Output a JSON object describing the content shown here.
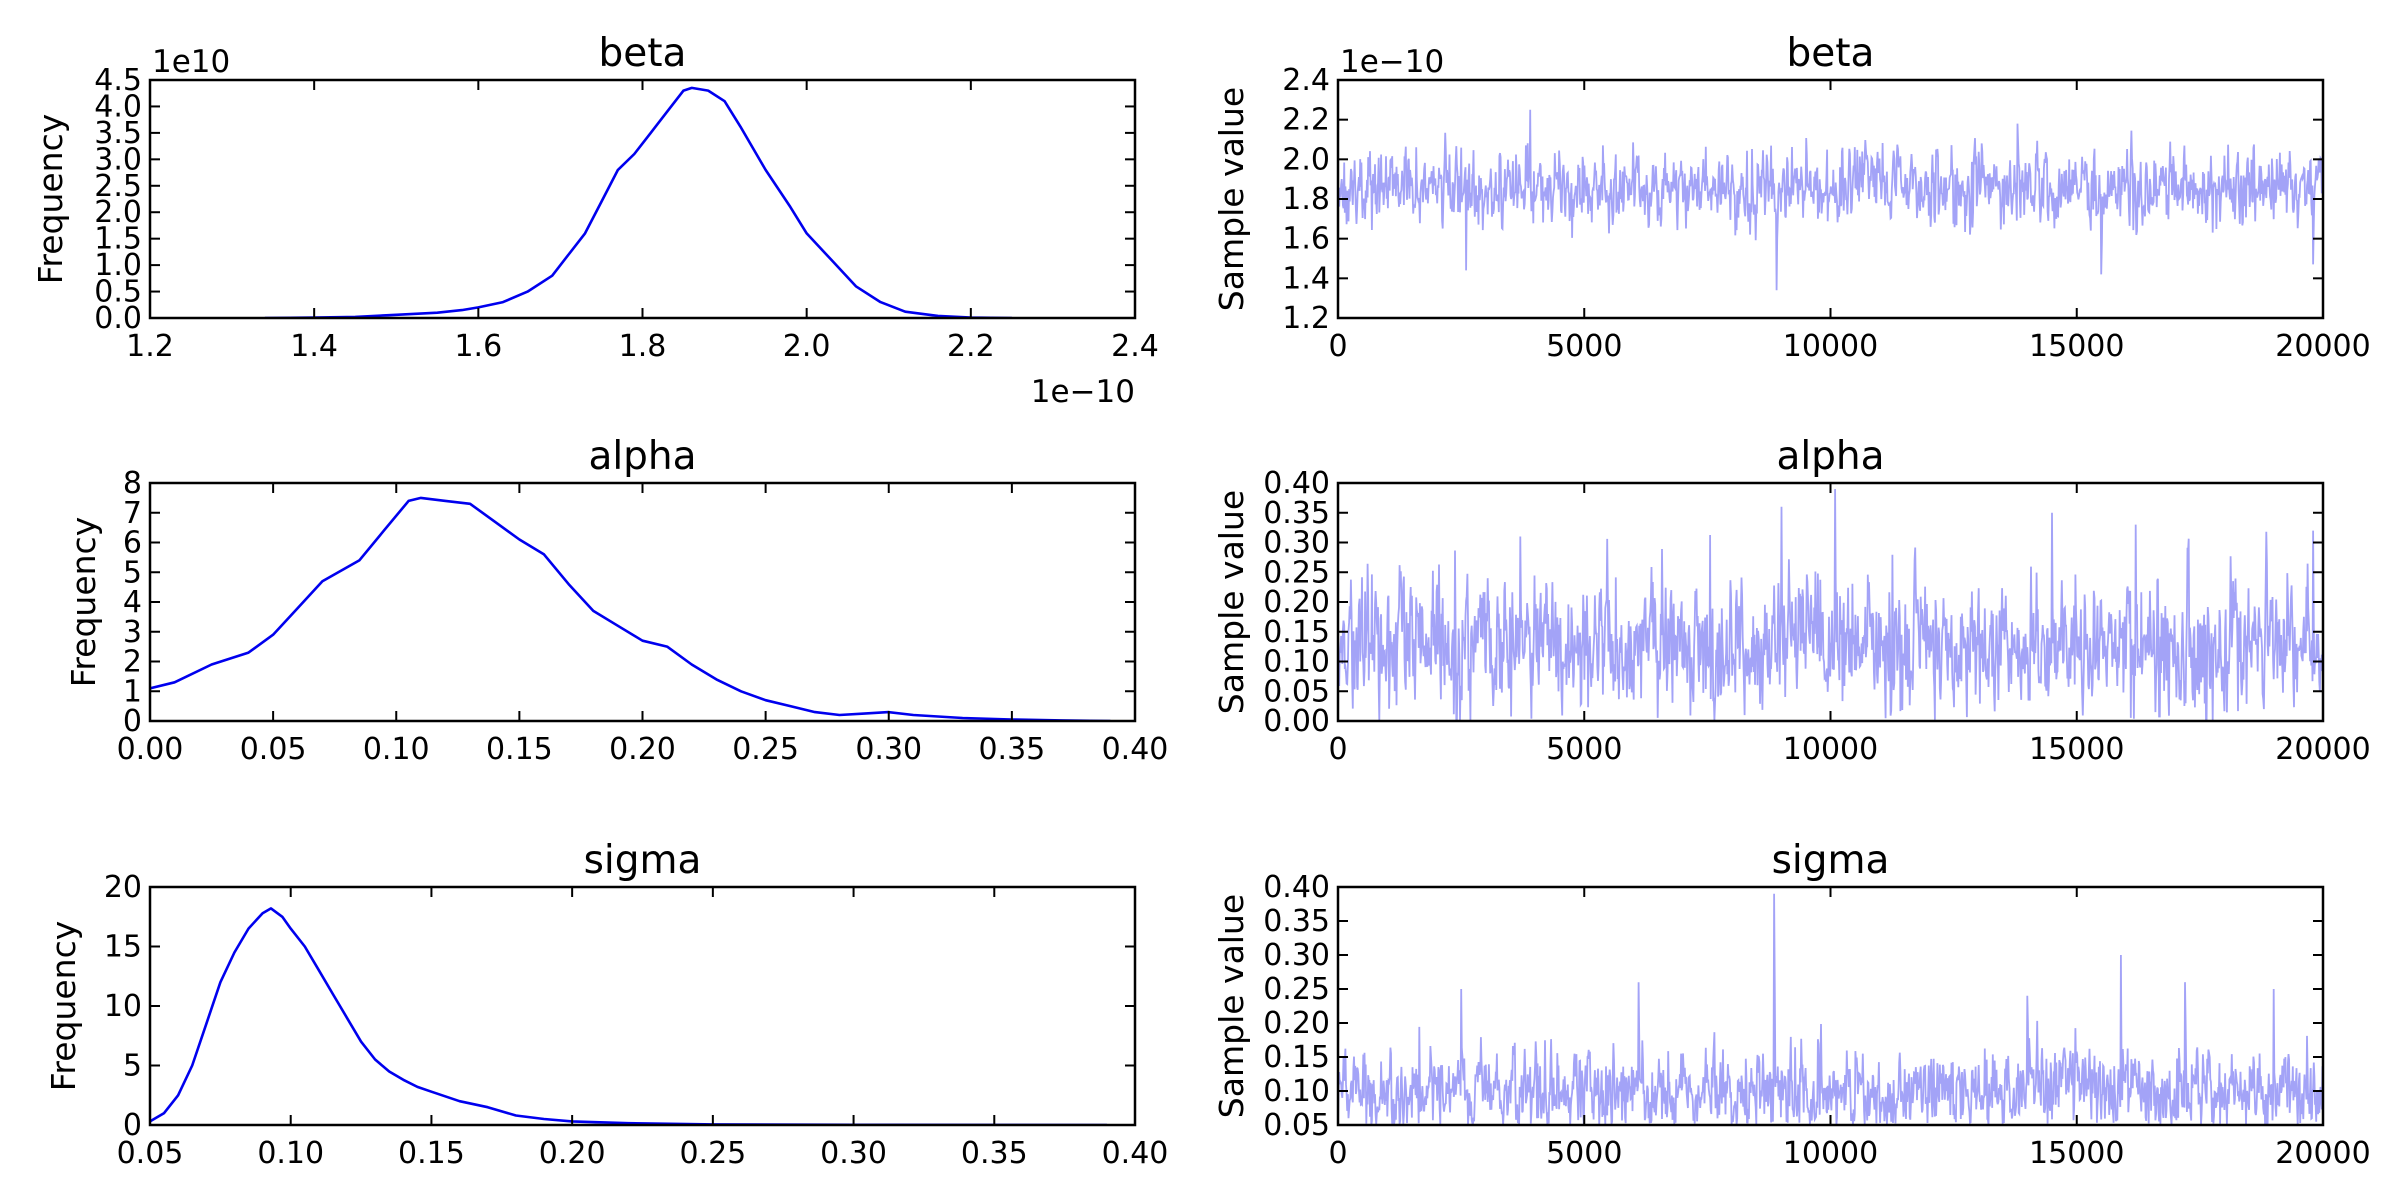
{
  "colors": {
    "density": "#0000ee",
    "trace": "#a3a3f7",
    "axes": "#000000",
    "background": "#ffffff"
  },
  "chart_data": [
    {
      "type": "line",
      "title": "beta",
      "xlabel": "",
      "ylabel": "Frequency",
      "x_offset_text": "1e−10",
      "y_offset_text": "1e10",
      "xlim": [
        1.2,
        2.4
      ],
      "ylim": [
        0.0,
        4.5
      ],
      "xticks": [
        "1.2",
        "1.4",
        "1.6",
        "1.8",
        "2.0",
        "2.2",
        "2.4"
      ],
      "yticks": [
        "0.0",
        "0.5",
        "1.0",
        "1.5",
        "2.0",
        "2.5",
        "3.0",
        "3.5",
        "4.0",
        "4.5"
      ],
      "grid": false,
      "x": [
        1.34,
        1.4,
        1.45,
        1.5,
        1.55,
        1.58,
        1.6,
        1.63,
        1.66,
        1.69,
        1.71,
        1.73,
        1.75,
        1.77,
        1.79,
        1.81,
        1.83,
        1.85,
        1.86,
        1.88,
        1.9,
        1.92,
        1.95,
        1.98,
        2.0,
        2.03,
        2.06,
        2.09,
        2.12,
        2.16,
        2.2,
        2.25
      ],
      "y": [
        0.0,
        0.01,
        0.02,
        0.06,
        0.1,
        0.15,
        0.2,
        0.3,
        0.5,
        0.8,
        1.2,
        1.6,
        2.2,
        2.8,
        3.1,
        3.5,
        3.9,
        4.3,
        4.35,
        4.3,
        4.1,
        3.6,
        2.8,
        2.1,
        1.6,
        1.1,
        0.6,
        0.3,
        0.12,
        0.04,
        0.01,
        0.0
      ]
    },
    {
      "type": "line",
      "title": "beta",
      "xlabel": "",
      "ylabel": "Sample value",
      "y_offset_text": "1e−10",
      "xlim": [
        0,
        20000
      ],
      "ylim": [
        1.2,
        2.4
      ],
      "xticks": [
        "0",
        "5000",
        "10000",
        "15000",
        "20000"
      ],
      "yticks": [
        "1.2",
        "1.4",
        "1.6",
        "1.8",
        "2.0",
        "2.2",
        "2.4"
      ],
      "grid": false,
      "n_samples": 20000,
      "trace": {
        "mean": 1.86,
        "sd": 0.09,
        "min": 1.34,
        "max": 2.25
      },
      "spikes": [
        {
          "x": 3900,
          "y": 2.25
        },
        {
          "x": 8900,
          "y": 1.34
        },
        {
          "x": 13800,
          "y": 2.18
        },
        {
          "x": 2600,
          "y": 1.44
        },
        {
          "x": 15500,
          "y": 1.42
        },
        {
          "x": 19800,
          "y": 1.47
        }
      ]
    },
    {
      "type": "line",
      "title": "alpha",
      "xlabel": "",
      "ylabel": "Frequency",
      "xlim": [
        0.0,
        0.4
      ],
      "ylim": [
        0,
        8
      ],
      "xticks": [
        "0.00",
        "0.05",
        "0.10",
        "0.15",
        "0.20",
        "0.25",
        "0.30",
        "0.35",
        "0.40"
      ],
      "yticks": [
        "0",
        "1",
        "2",
        "3",
        "4",
        "5",
        "6",
        "7",
        "8"
      ],
      "grid": false,
      "x": [
        0.0,
        0.01,
        0.025,
        0.04,
        0.05,
        0.06,
        0.07,
        0.085,
        0.095,
        0.105,
        0.11,
        0.12,
        0.13,
        0.14,
        0.15,
        0.16,
        0.17,
        0.18,
        0.19,
        0.2,
        0.21,
        0.22,
        0.23,
        0.24,
        0.25,
        0.26,
        0.27,
        0.28,
        0.29,
        0.3,
        0.31,
        0.33,
        0.35,
        0.37,
        0.39
      ],
      "y": [
        1.1,
        1.3,
        1.9,
        2.3,
        2.9,
        3.8,
        4.7,
        5.4,
        6.4,
        7.4,
        7.5,
        7.4,
        7.3,
        6.7,
        6.1,
        5.6,
        4.6,
        3.7,
        3.2,
        2.7,
        2.5,
        1.9,
        1.4,
        1.0,
        0.7,
        0.5,
        0.3,
        0.2,
        0.25,
        0.3,
        0.2,
        0.1,
        0.05,
        0.02,
        0.0
      ]
    },
    {
      "type": "line",
      "title": "alpha",
      "xlabel": "",
      "ylabel": "Sample value",
      "xlim": [
        0,
        20000
      ],
      "ylim": [
        0.0,
        0.4
      ],
      "xticks": [
        "0",
        "5000",
        "10000",
        "15000",
        "20000"
      ],
      "yticks": [
        "0.00",
        "0.05",
        "0.10",
        "0.15",
        "0.20",
        "0.25",
        "0.30",
        "0.35",
        "0.40"
      ],
      "grid": false,
      "n_samples": 20000,
      "trace": {
        "mean": 0.125,
        "sd": 0.055,
        "min": 0.0,
        "max": 0.39
      },
      "spikes": [
        {
          "x": 10100,
          "y": 0.39
        },
        {
          "x": 9000,
          "y": 0.36
        },
        {
          "x": 14500,
          "y": 0.35
        },
        {
          "x": 3700,
          "y": 0.31
        },
        {
          "x": 19800,
          "y": 0.32
        },
        {
          "x": 16200,
          "y": 0.33
        }
      ]
    },
    {
      "type": "line",
      "title": "sigma",
      "xlabel": "",
      "ylabel": "Frequency",
      "xlim": [
        0.05,
        0.4
      ],
      "ylim": [
        0,
        20
      ],
      "xticks": [
        "0.05",
        "0.10",
        "0.15",
        "0.20",
        "0.25",
        "0.30",
        "0.35",
        "0.40"
      ],
      "yticks": [
        "0",
        "5",
        "10",
        "15",
        "20"
      ],
      "grid": false,
      "x": [
        0.05,
        0.055,
        0.06,
        0.065,
        0.07,
        0.075,
        0.08,
        0.085,
        0.09,
        0.093,
        0.097,
        0.1,
        0.105,
        0.11,
        0.115,
        0.12,
        0.125,
        0.13,
        0.135,
        0.14,
        0.145,
        0.15,
        0.16,
        0.17,
        0.18,
        0.19,
        0.2,
        0.22,
        0.25,
        0.3,
        0.35,
        0.39
      ],
      "y": [
        0.3,
        1.0,
        2.5,
        5.0,
        8.5,
        12.0,
        14.5,
        16.5,
        17.8,
        18.2,
        17.5,
        16.5,
        15.0,
        13.0,
        11.0,
        9.0,
        7.0,
        5.5,
        4.5,
        3.8,
        3.2,
        2.8,
        2.0,
        1.5,
        0.8,
        0.5,
        0.3,
        0.15,
        0.05,
        0.02,
        0.01,
        0.0
      ]
    },
    {
      "type": "line",
      "title": "sigma",
      "xlabel": "",
      "ylabel": "Sample value",
      "xlim": [
        0,
        20000
      ],
      "ylim": [
        0.05,
        0.4
      ],
      "xticks": [
        "0",
        "5000",
        "10000",
        "15000",
        "20000"
      ],
      "yticks": [
        "0.05",
        "0.10",
        "0.15",
        "0.20",
        "0.25",
        "0.30",
        "0.35",
        "0.40"
      ],
      "grid": false,
      "n_samples": 20000,
      "trace": {
        "mean": 0.1,
        "sd": 0.03,
        "min": 0.05,
        "max": 0.39
      },
      "spikes": [
        {
          "x": 8850,
          "y": 0.39
        },
        {
          "x": 15900,
          "y": 0.3
        },
        {
          "x": 6100,
          "y": 0.26
        },
        {
          "x": 17200,
          "y": 0.26
        },
        {
          "x": 14000,
          "y": 0.24
        },
        {
          "x": 19000,
          "y": 0.25
        },
        {
          "x": 2500,
          "y": 0.25
        }
      ]
    }
  ]
}
